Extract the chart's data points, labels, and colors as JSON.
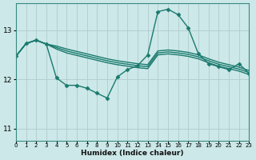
{
  "xlabel": "Humidex (Indice chaleur)",
  "bg_color": "#cce8e8",
  "grid_color": "#b0cccc",
  "line_color": "#1a7a6e",
  "xlim": [
    0,
    23
  ],
  "ylim": [
    10.75,
    13.55
  ],
  "yticks": [
    11,
    12,
    13
  ],
  "xticks": [
    0,
    1,
    2,
    3,
    4,
    5,
    6,
    7,
    8,
    9,
    10,
    11,
    12,
    13,
    14,
    15,
    16,
    17,
    18,
    19,
    20,
    21,
    22,
    23
  ],
  "series": [
    {
      "x": [
        0,
        1,
        2,
        3,
        4,
        5,
        6,
        7,
        8,
        9,
        10,
        11,
        12,
        13,
        14,
        15,
        16,
        17,
        18,
        19,
        20,
        21,
        22,
        23
      ],
      "y": [
        12.47,
        12.73,
        12.8,
        12.72,
        12.68,
        12.62,
        12.57,
        12.52,
        12.47,
        12.42,
        12.38,
        12.35,
        12.32,
        12.3,
        12.58,
        12.6,
        12.58,
        12.55,
        12.5,
        12.42,
        12.35,
        12.3,
        12.25,
        12.18
      ],
      "has_markers": false,
      "linewidth": 1.0
    },
    {
      "x": [
        0,
        1,
        2,
        3,
        4,
        5,
        6,
        7,
        8,
        9,
        10,
        11,
        12,
        13,
        14,
        15,
        16,
        17,
        18,
        19,
        20,
        21,
        22,
        23
      ],
      "y": [
        12.47,
        12.73,
        12.8,
        12.72,
        12.65,
        12.58,
        12.53,
        12.48,
        12.43,
        12.38,
        12.34,
        12.31,
        12.28,
        12.26,
        12.54,
        12.56,
        12.54,
        12.51,
        12.46,
        12.38,
        12.31,
        12.26,
        12.21,
        12.14
      ],
      "has_markers": false,
      "linewidth": 1.0
    },
    {
      "x": [
        0,
        1,
        2,
        3,
        4,
        5,
        6,
        7,
        8,
        9,
        10,
        11,
        12,
        13,
        14,
        15,
        16,
        17,
        18,
        19,
        20,
        21,
        22,
        23
      ],
      "y": [
        12.47,
        12.73,
        12.8,
        12.72,
        12.62,
        12.54,
        12.49,
        12.44,
        12.39,
        12.34,
        12.3,
        12.27,
        12.24,
        12.22,
        12.5,
        12.52,
        12.5,
        12.47,
        12.42,
        12.34,
        12.27,
        12.22,
        12.17,
        12.1
      ],
      "has_markers": false,
      "linewidth": 1.0
    },
    {
      "x": [
        0,
        1,
        2,
        3,
        4,
        5,
        6,
        7,
        8,
        9,
        10,
        11,
        12,
        13,
        14,
        15,
        16,
        17,
        18,
        19,
        20,
        21,
        22,
        23
      ],
      "y": [
        12.47,
        12.73,
        12.8,
        12.72,
        12.03,
        11.88,
        11.88,
        11.82,
        11.72,
        11.62,
        12.05,
        12.2,
        12.28,
        12.5,
        13.38,
        13.43,
        13.32,
        13.05,
        12.52,
        12.32,
        12.26,
        12.2,
        12.32,
        12.12
      ],
      "has_markers": true,
      "linewidth": 1.0
    }
  ]
}
